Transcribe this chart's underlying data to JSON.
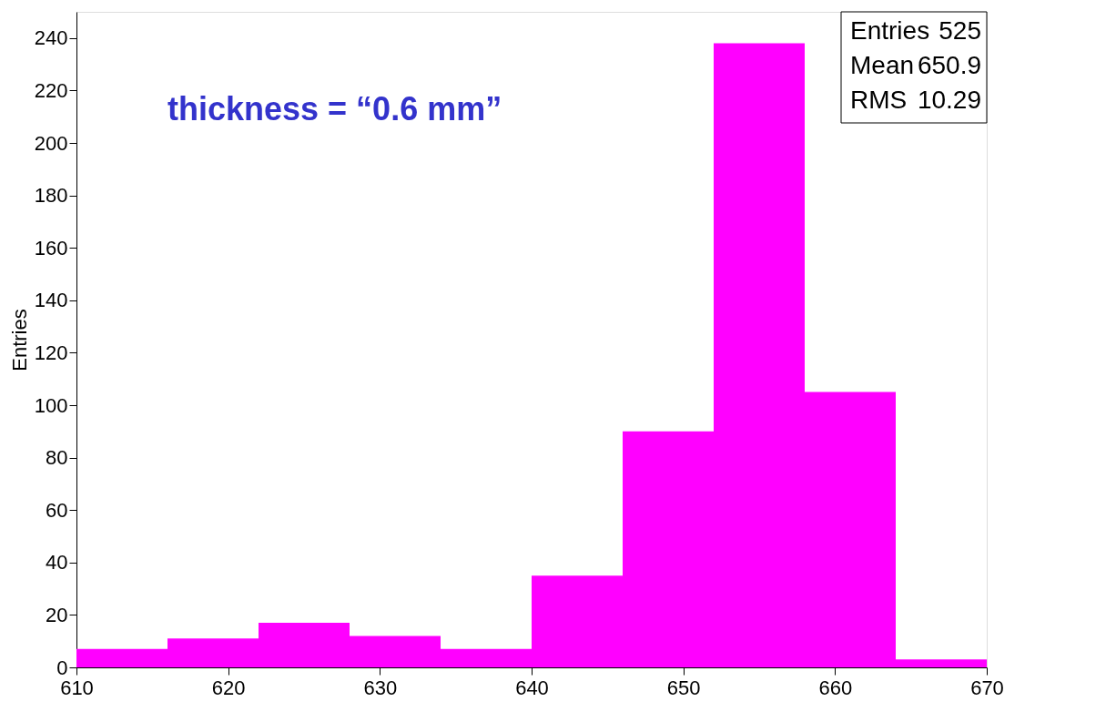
{
  "chart_data": {
    "type": "histogram",
    "ylabel": "Entries",
    "bins": [
      610,
      616,
      622,
      628,
      634,
      640,
      646,
      652,
      658,
      664,
      670
    ],
    "values": [
      7,
      11,
      17,
      12,
      7,
      35,
      90,
      238,
      105,
      3
    ],
    "color": "#ff00ff",
    "xlim": [
      610,
      670
    ],
    "xticks": [
      610,
      620,
      630,
      640,
      650,
      660,
      670
    ],
    "ylim": [
      0,
      250
    ],
    "yticks": [
      0,
      20,
      40,
      60,
      80,
      100,
      120,
      140,
      160,
      180,
      200,
      220,
      240
    ],
    "grid": false,
    "annotations": [
      "thickness = “0.6 mm”",
      "Entries",
      "525",
      "Mean",
      "650.9",
      "RMS",
      "10.29"
    ]
  }
}
